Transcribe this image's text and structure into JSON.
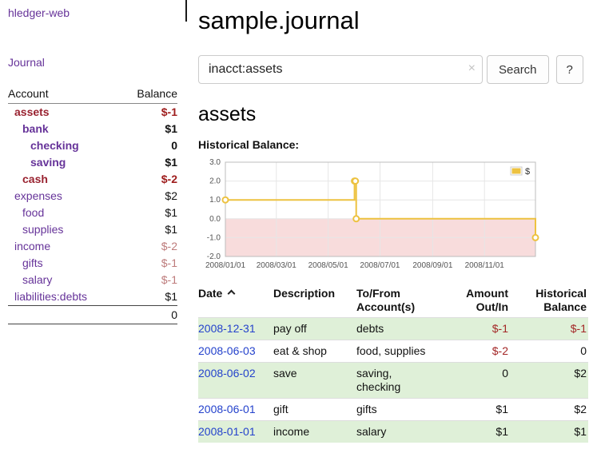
{
  "sidebar": {
    "brand": "hledger-web",
    "journal_link": "Journal",
    "accounts_header": {
      "account": "Account",
      "balance": "Balance"
    },
    "accounts": [
      {
        "name": "assets",
        "indent": 0,
        "bold": true,
        "negative_name": true,
        "balance": "$-1",
        "balance_style": "negative"
      },
      {
        "name": "bank",
        "indent": 1,
        "bold": true,
        "negative_name": false,
        "balance": "$1",
        "balance_style": "normal"
      },
      {
        "name": "checking",
        "indent": 2,
        "bold": true,
        "negative_name": false,
        "balance": "0",
        "balance_style": "normal"
      },
      {
        "name": "saving",
        "indent": 2,
        "bold": true,
        "negative_name": false,
        "balance": "$1",
        "balance_style": "normal"
      },
      {
        "name": "cash",
        "indent": 1,
        "bold": true,
        "negative_name": true,
        "balance": "$-2",
        "balance_style": "negative"
      },
      {
        "name": "expenses",
        "indent": 0,
        "bold": false,
        "negative_name": false,
        "balance": "$2",
        "balance_style": "normal"
      },
      {
        "name": "food",
        "indent": 1,
        "bold": false,
        "negative_name": false,
        "balance": "$1",
        "balance_style": "normal"
      },
      {
        "name": "supplies",
        "indent": 1,
        "bold": false,
        "negative_name": false,
        "balance": "$1",
        "balance_style": "normal"
      },
      {
        "name": "income",
        "indent": 0,
        "bold": false,
        "negative_name": false,
        "balance": "$-2",
        "balance_style": "negative-muted"
      },
      {
        "name": "gifts",
        "indent": 1,
        "bold": false,
        "negative_name": false,
        "balance": "$-1",
        "balance_style": "negative-muted"
      },
      {
        "name": "salary",
        "indent": 1,
        "bold": false,
        "negative_name": false,
        "balance": "$-1",
        "balance_style": "negative-muted"
      },
      {
        "name": "liabilities:debts",
        "indent": 0,
        "bold": false,
        "negative_name": false,
        "balance": "$1",
        "balance_style": "normal"
      }
    ],
    "accounts_total": "0"
  },
  "main": {
    "title": "sample.journal",
    "search": {
      "value": "inacct:assets",
      "clear_icon": "×",
      "button_label": "Search",
      "help_label": "?"
    },
    "account_heading": "assets",
    "chart_label": "Historical Balance:",
    "register": {
      "headers": {
        "date": "Date",
        "description": "Description",
        "accounts_line1": "To/From",
        "accounts_line2": "Account(s)",
        "amount_line1": "Amount",
        "amount_line2": "Out/In",
        "balance_line1": "Historical",
        "balance_line2": "Balance"
      },
      "rows": [
        {
          "date": "2008-12-31",
          "description": "pay off",
          "accounts": "debts",
          "amount": "$-1",
          "amount_negative": true,
          "balance": "$-1",
          "balance_negative": true
        },
        {
          "date": "2008-06-03",
          "description": "eat & shop",
          "accounts": "food, supplies",
          "amount": "$-2",
          "amount_negative": true,
          "balance": "0",
          "balance_negative": false
        },
        {
          "date": "2008-06-02",
          "description": "save",
          "accounts": "saving,\nchecking",
          "amount": "0",
          "amount_negative": false,
          "balance": "$2",
          "balance_negative": false
        },
        {
          "date": "2008-06-01",
          "description": "gift",
          "accounts": "gifts",
          "amount": "$1",
          "amount_negative": false,
          "balance": "$2",
          "balance_negative": false
        },
        {
          "date": "2008-01-01",
          "description": "income",
          "accounts": "salary",
          "amount": "$1",
          "amount_negative": false,
          "balance": "$1",
          "balance_negative": false
        }
      ]
    }
  },
  "colors": {
    "link_purple": "#663399",
    "negative_strong": "#9e1c1c",
    "negative_muted": "#bd7b7b",
    "date_link_blue": "#2442cc",
    "row_green": "#dff0d8",
    "chart_line": "#edc240",
    "chart_below_zero_fill": "#f8dcdc"
  },
  "chart_data": {
    "type": "line",
    "step": true,
    "title": "Historical Balance",
    "xlabel": "",
    "ylabel": "",
    "legend": {
      "label": "$",
      "position": "top-right"
    },
    "series": [
      {
        "name": "$",
        "color": "#edc240",
        "points": [
          [
            "2008-01-01",
            1
          ],
          [
            "2008-06-01",
            2
          ],
          [
            "2008-06-02",
            2
          ],
          [
            "2008-06-03",
            0
          ],
          [
            "2008-12-31",
            -1
          ]
        ]
      }
    ],
    "ylim": [
      -2.0,
      3.0
    ],
    "yticks": [
      3.0,
      2.0,
      1.0,
      0.0,
      -1.0,
      -2.0
    ],
    "xticks": [
      "2008/01/01",
      "2008/03/01",
      "2008/05/01",
      "2008/07/01",
      "2008/09/01",
      "2008/11/01"
    ],
    "x_domain_days": [
      0,
      365
    ],
    "below_zero_fill": "#f8dcdc",
    "grid": true
  }
}
